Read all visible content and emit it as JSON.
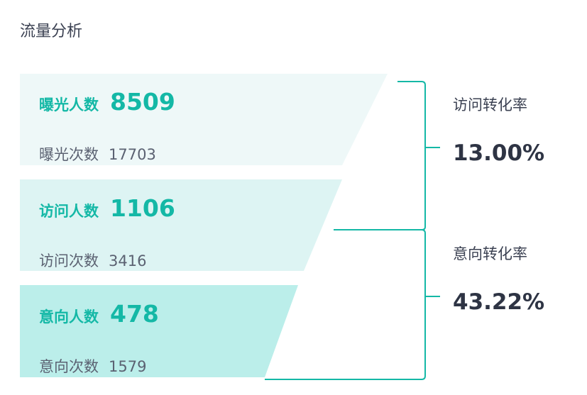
{
  "title": "流量分析",
  "colors": {
    "accent": "#14b8a6",
    "stage1_bg": "#eef8f8",
    "stage2_bg": "#ddf4f3",
    "stage3_bg": "#bbeeea",
    "connector": "#14b8a6"
  },
  "stages": [
    {
      "label": "曝光人数",
      "count": "8509",
      "sub_label": "曝光次数",
      "sub_count": "17703"
    },
    {
      "label": "访问人数",
      "count": "1106",
      "sub_label": "访问次数",
      "sub_count": "3416"
    },
    {
      "label": "意向人数",
      "count": "478",
      "sub_label": "意向次数",
      "sub_count": "1579"
    }
  ],
  "rates": [
    {
      "label": "访问转化率",
      "value": "13.00%"
    },
    {
      "label": "意向转化率",
      "value": "43.22%"
    }
  ]
}
